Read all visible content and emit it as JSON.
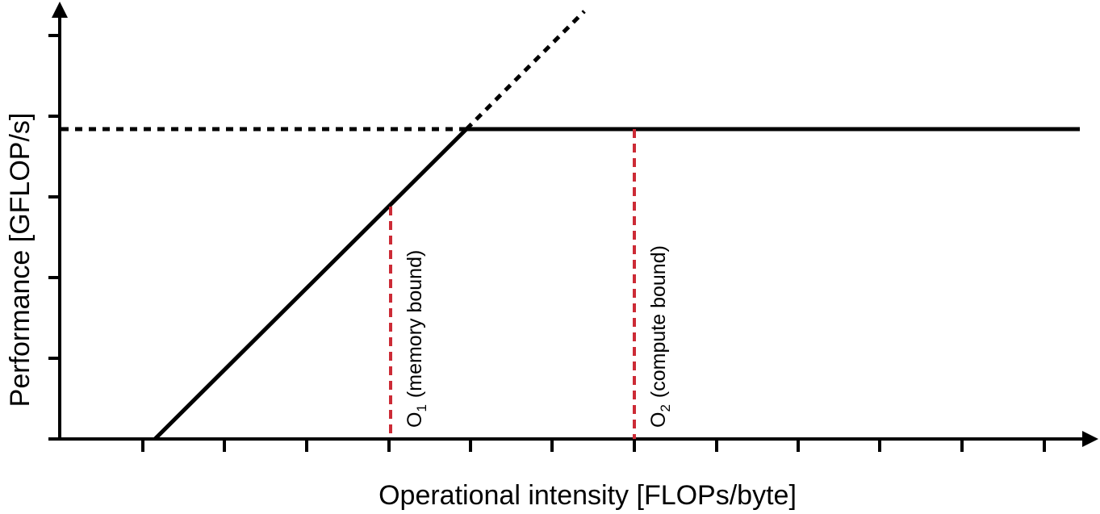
{
  "diagram": {
    "xlabel": "Operational intensity [FLOPs/byte]",
    "ylabel": "Performance [GFLOP/s]",
    "colors": {
      "line": "#000000",
      "marker": "#cc2b36"
    },
    "markers": [
      {
        "letter": "O",
        "subscript": "1",
        "note": "(memory bound)"
      },
      {
        "letter": "O",
        "subscript": "2",
        "note": "(compute bound)"
      }
    ]
  }
}
